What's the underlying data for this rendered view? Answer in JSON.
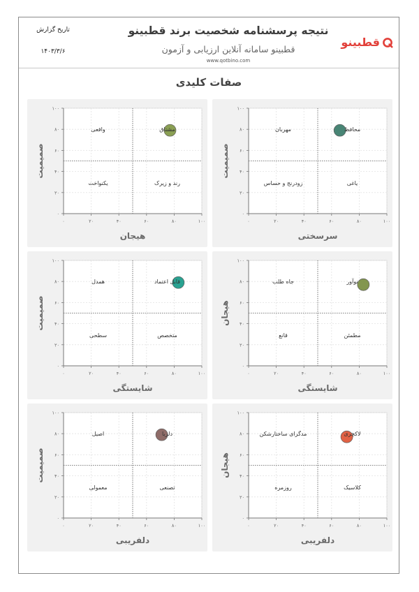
{
  "header": {
    "title": "نتیجه پرسشنامه شخصیت برند قطبینو",
    "subtitle": "قطبینو سامانه آنلاین ارزیابی و آزمون",
    "url": "www.qotbino.com",
    "date_label": "تاریخ گزارش",
    "date_value": "۱۴۰۳/۳/۶",
    "logo_text": "قطبینو",
    "logo_icon": "q-ring-icon",
    "logo_color": "#e2403a"
  },
  "section_title": "صفات کلیدی",
  "chart_data": [
    {
      "type": "scatter",
      "xlabel": "سرسختی",
      "ylabel": "صمیمیت",
      "xlim": [
        0,
        100
      ],
      "ylim": [
        0,
        100
      ],
      "xticks": [
        "۰",
        "۲۰",
        "۴۰",
        "۶۰",
        "۸۰",
        "۱۰۰"
      ],
      "yticks": [
        "۰",
        "۲۰",
        "۴۰",
        "۶۰",
        "۸۰",
        "۱۰۰"
      ],
      "quadrants": {
        "top_left": "مهربان",
        "top_right": "محافظ",
        "bottom_left": "زودرنج و حساس",
        "bottom_right": "یاغی"
      },
      "point": {
        "x": 66,
        "y": 79,
        "color": "#3f7f6e"
      },
      "grid": true
    },
    {
      "type": "scatter",
      "xlabel": "هیجان",
      "ylabel": "صمیمیت",
      "xlim": [
        0,
        100
      ],
      "ylim": [
        0,
        100
      ],
      "xticks": [
        "۰",
        "۲۰",
        "۴۰",
        "۶۰",
        "۸۰",
        "۱۰۰"
      ],
      "yticks": [
        "۰",
        "۲۰",
        "۴۰",
        "۶۰",
        "۸۰",
        "۱۰۰"
      ],
      "quadrants": {
        "top_left": "واقعی",
        "top_right": "مشتاق",
        "bottom_left": "یکنواخت",
        "bottom_right": "رند و زیرک"
      },
      "point": {
        "x": 77,
        "y": 79,
        "color": "#849a4a"
      },
      "grid": true
    },
    {
      "type": "scatter",
      "xlabel": "شایستگی",
      "ylabel": "هیجان",
      "xlim": [
        0,
        100
      ],
      "ylim": [
        0,
        100
      ],
      "xticks": [
        "۰",
        "۲۰",
        "۴۰",
        "۶۰",
        "۸۰",
        "۱۰۰"
      ],
      "yticks": [
        "۰",
        "۲۰",
        "۴۰",
        "۶۰",
        "۸۰",
        "۱۰۰"
      ],
      "quadrants": {
        "top_left": "جاه طلب",
        "top_right": "نوآور",
        "bottom_left": "قانع",
        "bottom_right": "مطمئن"
      },
      "point": {
        "x": 83,
        "y": 77,
        "color": "#7d9146"
      },
      "grid": true
    },
    {
      "type": "scatter",
      "xlabel": "شایستگی",
      "ylabel": "صمیمیت",
      "xlim": [
        0,
        100
      ],
      "ylim": [
        0,
        100
      ],
      "xticks": [
        "۰",
        "۲۰",
        "۴۰",
        "۶۰",
        "۸۰",
        "۱۰۰"
      ],
      "yticks": [
        "۰",
        "۲۰",
        "۴۰",
        "۶۰",
        "۸۰",
        "۱۰۰"
      ],
      "quadrants": {
        "top_left": "همدل",
        "top_right": "قابل اعتماد",
        "bottom_left": "سطحی",
        "bottom_right": "متخصص"
      },
      "point": {
        "x": 83,
        "y": 79,
        "color": "#1e9e8c"
      },
      "grid": true
    },
    {
      "type": "scatter",
      "xlabel": "دلفریبی",
      "ylabel": "هیجان",
      "xlim": [
        0,
        100
      ],
      "ylim": [
        0,
        100
      ],
      "xticks": [
        "۰",
        "۲۰",
        "۴۰",
        "۶۰",
        "۸۰",
        "۱۰۰"
      ],
      "yticks": [
        "۰",
        "۲۰",
        "۴۰",
        "۶۰",
        "۸۰",
        "۱۰۰"
      ],
      "quadrants": {
        "top_left": "مدگرای ساختارشکن",
        "top_right": "لاکچری",
        "bottom_left": "روزمره",
        "bottom_right": "کلاسیک"
      },
      "point": {
        "x": 71,
        "y": 77,
        "color": "#e05a3c"
      },
      "grid": true
    },
    {
      "type": "scatter",
      "xlabel": "دلفریبی",
      "ylabel": "صمیمیت",
      "xlim": [
        0,
        100
      ],
      "ylim": [
        0,
        100
      ],
      "xticks": [
        "۰",
        "۲۰",
        "۴۰",
        "۶۰",
        "۸۰",
        "۱۰۰"
      ],
      "yticks": [
        "۰",
        "۲۰",
        "۴۰",
        "۶۰",
        "۸۰",
        "۱۰۰"
      ],
      "quadrants": {
        "top_left": "اصیل",
        "top_right": "دلربا",
        "bottom_left": "معمولی",
        "bottom_right": "تصنعی"
      },
      "point": {
        "x": 71,
        "y": 79,
        "color": "#8a6560"
      },
      "grid": true
    }
  ]
}
